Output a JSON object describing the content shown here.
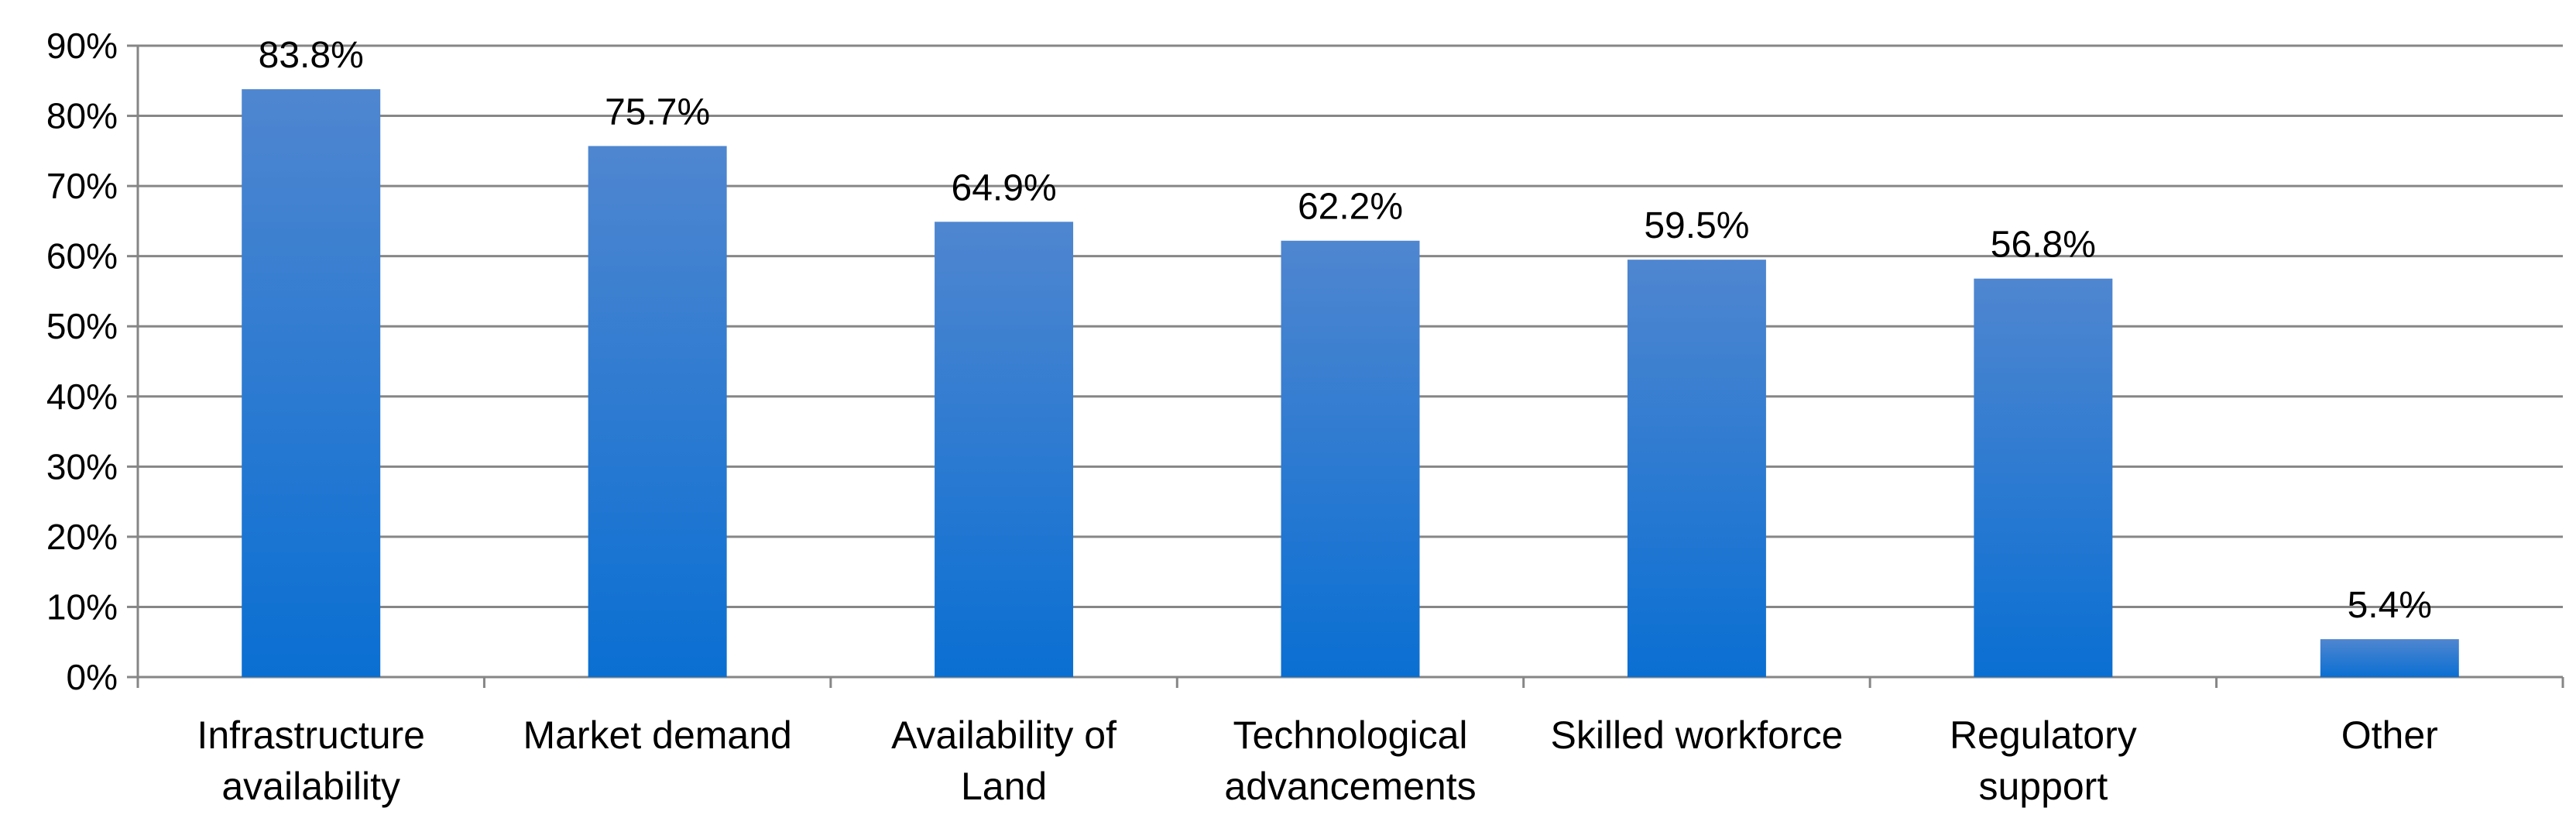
{
  "chart_data": {
    "type": "bar",
    "categories": [
      [
        "Infrastructure",
        "availability"
      ],
      [
        "Market demand"
      ],
      [
        "Availability of",
        "Land"
      ],
      [
        "Technological",
        "advancements"
      ],
      [
        "Skilled workforce"
      ],
      [
        "Regulatory",
        "support"
      ],
      [
        "Other"
      ]
    ],
    "values": [
      83.8,
      75.7,
      64.9,
      62.2,
      59.5,
      56.8,
      5.4
    ],
    "data_labels": [
      "83.8%",
      "75.7%",
      "64.9%",
      "62.2%",
      "59.5%",
      "56.8%",
      "5.4%"
    ],
    "y_ticks": [
      "0%",
      "10%",
      "20%",
      "30%",
      "40%",
      "50%",
      "60%",
      "70%",
      "80%",
      "90%"
    ],
    "ylim": [
      0,
      90
    ],
    "grid": true,
    "legend": "none",
    "colors": {
      "bar_top": "#4f86d0",
      "bar_bottom": "#0a6fd2",
      "grid": "#868686",
      "axis": "#868686"
    }
  }
}
